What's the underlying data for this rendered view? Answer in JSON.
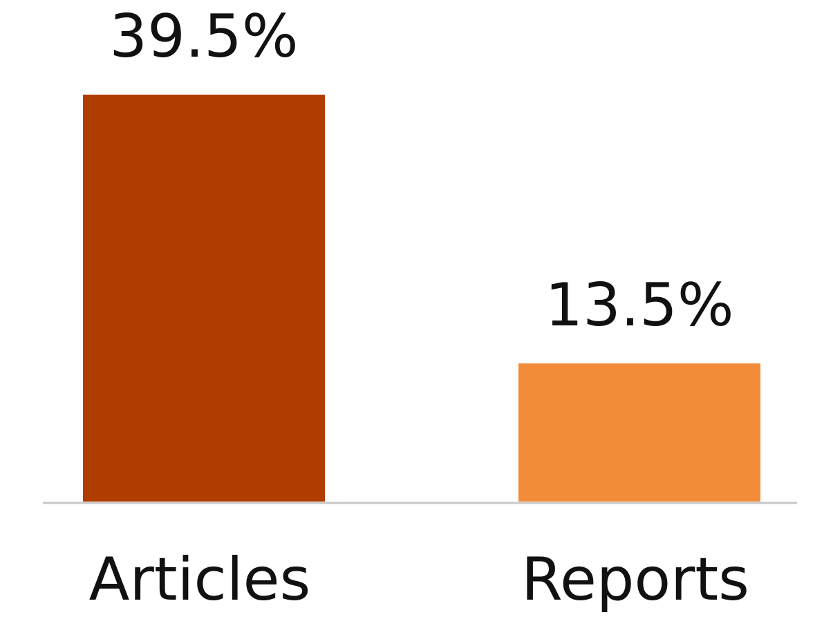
{
  "chart_data": {
    "type": "bar",
    "categories": [
      "Articles",
      "Reports"
    ],
    "values": [
      39.5,
      13.5
    ],
    "data_labels": [
      "39.5%",
      "13.5%"
    ],
    "colors": [
      "#b03c00",
      "#f28c38"
    ],
    "axis_color": "#c8c8c8",
    "title": "",
    "xlabel": "",
    "ylabel": "",
    "ylim": [
      0,
      39.5
    ],
    "grid": false,
    "legend": "none"
  }
}
